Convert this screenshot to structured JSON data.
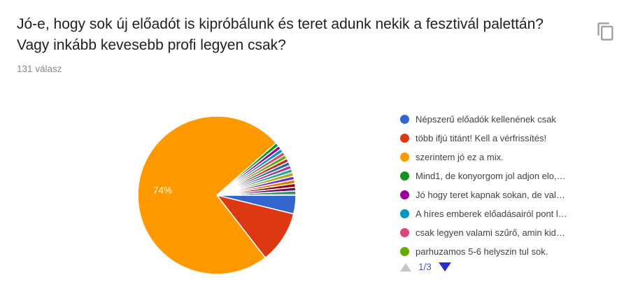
{
  "header": {
    "title": "Jó-e, hogy sok új előadót is kipróbálunk és teret adunk nekik a fesztivál palettán? Vagy inkább kevesebb profi legyen csak?",
    "responses_count": "131 válasz",
    "copy_icon": "content-copy-icon"
  },
  "chart_data": {
    "type": "pie",
    "title": "Jó-e, hogy sok új előadót is kipróbálunk és teret adunk nekik a fesztivál palettán? Vagy inkább kevesebb profi legyen csak?",
    "subtitle": "131 válasz",
    "total_responses": 131,
    "legend_position": "right",
    "start_angle_deg": 90,
    "direction": "clockwise",
    "legend_page": "1/3",
    "slices": [
      {
        "pct": 3.8,
        "color": "#3366CC",
        "legend_text": "Népszerű előadók kellenének csak"
      },
      {
        "pct": 10.7,
        "color": "#DC3912",
        "legend_text": "több ifjú titánt! Kell a vérfrissítés!"
      },
      {
        "pct": 74.0,
        "color": "#FF9900",
        "legend_text": "szerintem jó ez a mix.",
        "data_label": "74%"
      },
      {
        "pct": 0.76,
        "color": "#109618",
        "legend_text": "Mind1, de konyorgom jol adjon elo,…"
      },
      {
        "pct": 0.76,
        "color": "#990099",
        "legend_text": "Jó hogy teret kapnak sokan, de val…"
      },
      {
        "pct": 0.76,
        "color": "#0099C6",
        "legend_text": "A híres emberek előadásairól pont l…"
      },
      {
        "pct": 0.76,
        "color": "#DD4477",
        "legend_text": "csak legyen valami szűrő, amin kid…"
      },
      {
        "pct": 0.76,
        "color": "#66AA00",
        "legend_text": "parhuzamos 5-6 helyszin tul sok."
      },
      {
        "pct": 0.76,
        "color": "#B82E2E"
      },
      {
        "pct": 0.76,
        "color": "#316395"
      },
      {
        "pct": 0.76,
        "color": "#994499"
      },
      {
        "pct": 0.76,
        "color": "#22AA99"
      },
      {
        "pct": 0.76,
        "color": "#AAAA11"
      },
      {
        "pct": 0.76,
        "color": "#6633CC"
      },
      {
        "pct": 0.76,
        "color": "#E67300"
      },
      {
        "pct": 0.76,
        "color": "#8B0707"
      },
      {
        "pct": 0.76,
        "color": "#651067"
      },
      {
        "pct": 0.76,
        "color": "#329262"
      }
    ]
  }
}
